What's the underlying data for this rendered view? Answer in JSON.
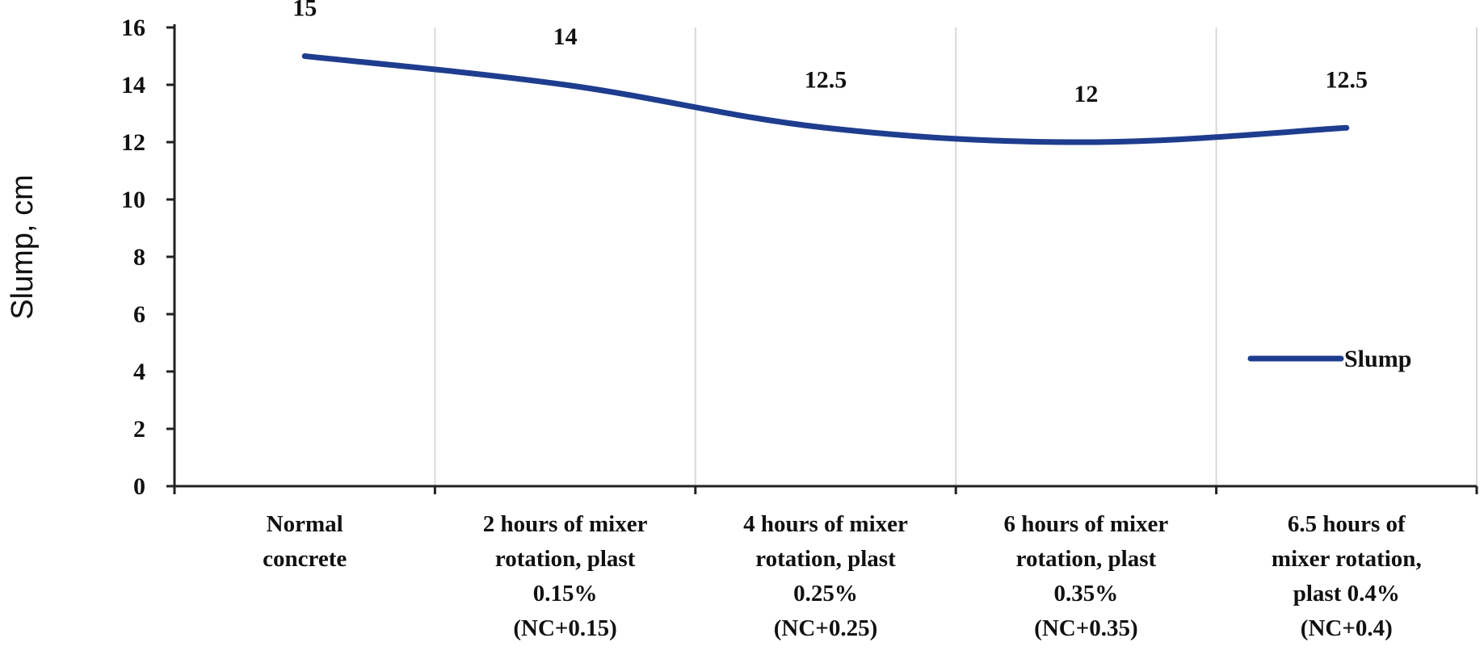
{
  "chart_data": {
    "type": "line",
    "categories": [
      [
        "Normal",
        "concrete"
      ],
      [
        "2 hours of mixer",
        "rotation, plast",
        "0.15%",
        "(NC+0.15)"
      ],
      [
        "4 hours of mixer",
        "rotation, plast",
        "0.25%",
        "(NC+0.25)"
      ],
      [
        "6 hours of mixer",
        "rotation, plast",
        "0.35%",
        "(NC+0.35)"
      ],
      [
        "6.5 hours of",
        "mixer rotation,",
        "plast 0.4%",
        "(NC+0.4)"
      ]
    ],
    "series": [
      {
        "name": "Slump",
        "values": [
          15,
          14,
          12.5,
          12,
          12.5
        ],
        "color": "#1f3d8f"
      }
    ],
    "data_labels": [
      "15",
      "14",
      "12.5",
      "12",
      "12.5"
    ],
    "xlabel": "",
    "ylabel": "Slump, cm",
    "ylim": [
      0,
      16
    ],
    "yticks": [
      0,
      2,
      4,
      6,
      8,
      10,
      12,
      14,
      16
    ],
    "grid": "vertical",
    "legend": {
      "position": "right",
      "entries": [
        "Slump"
      ]
    }
  }
}
